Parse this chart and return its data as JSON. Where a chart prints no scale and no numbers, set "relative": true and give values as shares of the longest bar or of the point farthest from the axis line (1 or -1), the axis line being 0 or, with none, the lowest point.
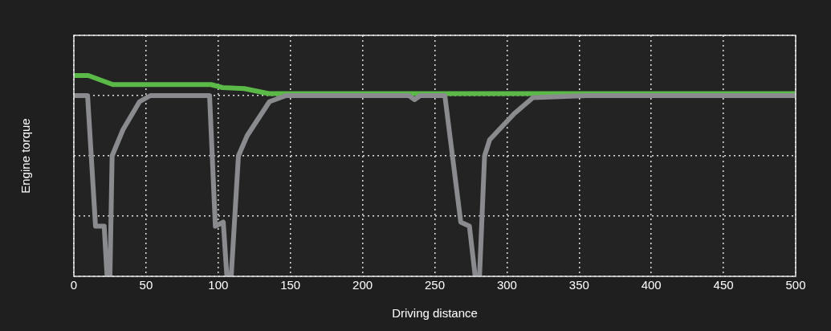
{
  "chart_data": {
    "type": "line",
    "xlabel": "Driving distance",
    "ylabel": "Engine torque",
    "relative": true,
    "grid": true,
    "xlim": [
      0,
      500
    ],
    "xticks": [
      0,
      50,
      100,
      150,
      200,
      250,
      300,
      350,
      400,
      450,
      500
    ],
    "series": [
      {
        "color": "#8a8b8f",
        "x": [
          1,
          9.5,
          15,
          21,
          23,
          25,
          26.5,
          34,
          45.5,
          53,
          94,
          98,
          103.5,
          106,
          109,
          114,
          120,
          135.5,
          147,
          232,
          236,
          240,
          257,
          268,
          274,
          278,
          281,
          284.5,
          288,
          305,
          318,
          355.5,
          500
        ],
        "values": [
          0.9,
          0.9,
          0.25,
          0.25,
          0,
          0,
          0.6,
          0.73,
          0.87,
          0.9,
          0.9,
          0.25,
          0.27,
          0,
          0,
          0.6,
          0.7,
          0.87,
          0.9,
          0.9,
          0.88,
          0.9,
          0.9,
          0.27,
          0.25,
          0,
          0,
          0.6,
          0.68,
          0.81,
          0.89,
          0.9,
          0.9
        ]
      },
      {
        "color": "#5bb947",
        "x": [
          0,
          10,
          27,
          95,
          103,
          118,
          135,
          500
        ],
        "values": [
          1,
          1,
          0.955,
          0.955,
          0.94,
          0.935,
          0.91,
          0.91
        ]
      }
    ]
  }
}
